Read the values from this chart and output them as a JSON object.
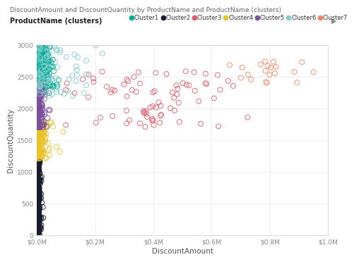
{
  "title": "DiscountAmount and DiscountQuantity by ProductName and ProductName (clusters)",
  "xlabel": "DiscountAmount",
  "ylabel": "DiscountQuantity",
  "xlim": [
    0,
    1000000
  ],
  "ylim": [
    0,
    3000
  ],
  "xticks": [
    0,
    200000,
    400000,
    600000,
    800000,
    1000000
  ],
  "xticklabels": [
    "$0.0M",
    "$0.2M",
    "$0.4M",
    "$0.6M",
    "$0.8M",
    "$1.0M"
  ],
  "yticks": [
    0,
    500,
    1000,
    1500,
    2000,
    2500,
    3000
  ],
  "clusters": [
    {
      "name": "Cluster1",
      "color": "#00A896",
      "points": {
        "x_center": 50000,
        "x_std": 40000,
        "x_max": 180000,
        "y_min": 2300,
        "y_max": 3000,
        "n": 300
      }
    },
    {
      "name": "Cluster2",
      "color": "#1A1A2E",
      "points": {
        "x_center": 15000,
        "x_std": 20000,
        "x_max": 80000,
        "y_min": 0,
        "y_max": 1200,
        "n": 500
      }
    },
    {
      "name": "Cluster3",
      "color": "#E05C6A",
      "points": {
        "x_center": 400000,
        "x_std": 150000,
        "x_max": 750000,
        "y_min": 1700,
        "y_max": 2600,
        "n": 80
      }
    },
    {
      "name": "Cluster4",
      "color": "#E8C32A",
      "points": {
        "x_center": 60000,
        "x_std": 50000,
        "x_max": 250000,
        "y_min": 1200,
        "y_max": 1800,
        "n": 180
      }
    },
    {
      "name": "Cluster5",
      "color": "#7B4F9E",
      "points": {
        "x_center": 30000,
        "x_std": 35000,
        "x_max": 150000,
        "y_min": 1700,
        "y_max": 2400,
        "n": 250
      }
    },
    {
      "name": "Cluster6",
      "color": "#7ECECA",
      "points": {
        "x_center": 150000,
        "x_std": 100000,
        "x_max": 400000,
        "y_min": 2200,
        "y_max": 3000,
        "n": 100
      }
    },
    {
      "name": "Cluster7",
      "color": "#F4845F",
      "points": {
        "x_center": 750000,
        "x_std": 80000,
        "x_max": 950000,
        "y_min": 2400,
        "y_max": 2750,
        "n": 20
      }
    }
  ],
  "legend_label": "ProductName (clusters)",
  "marker_size": 5,
  "background_color": "#ffffff",
  "grid_color": "#e8e8e8"
}
